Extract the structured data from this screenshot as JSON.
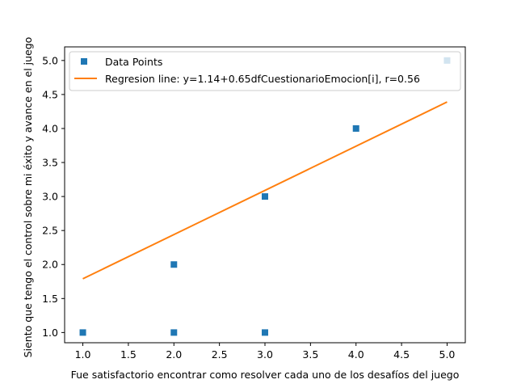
{
  "chart_data": {
    "type": "scatter",
    "title": "",
    "xlabel": "Fue satisfactorio encontrar como resolver cada uno de los desafíos del juego",
    "ylabel": "Siento que tengo el control sobre mi éxito y avance en el juego",
    "xlim": [
      0.8,
      5.2
    ],
    "ylim": [
      0.85,
      5.2
    ],
    "xticks": [
      1.0,
      1.5,
      2.0,
      2.5,
      3.0,
      3.5,
      4.0,
      4.5,
      5.0
    ],
    "yticks": [
      1.0,
      1.5,
      2.0,
      2.5,
      3.0,
      3.5,
      4.0,
      4.5,
      5.0
    ],
    "tick_format_decimals": 1,
    "grid": false,
    "legend_position": "upper-left",
    "series": [
      {
        "name": "Data Points",
        "kind": "scatter",
        "marker": "square",
        "color": "#1f77b4",
        "points": [
          [
            1.0,
            1.0
          ],
          [
            2.0,
            1.0
          ],
          [
            2.0,
            2.0
          ],
          [
            3.0,
            1.0
          ],
          [
            3.0,
            3.0
          ],
          [
            4.0,
            4.0
          ],
          [
            5.0,
            5.0
          ]
        ]
      },
      {
        "name": "Regresion line: y=1.14+0.65dfCuestionarioEmocion[i], r=0.56",
        "kind": "line",
        "color": "#ff7f0e",
        "intercept": 1.14,
        "slope": 0.65,
        "x_range": [
          1.0,
          5.0
        ]
      }
    ]
  }
}
